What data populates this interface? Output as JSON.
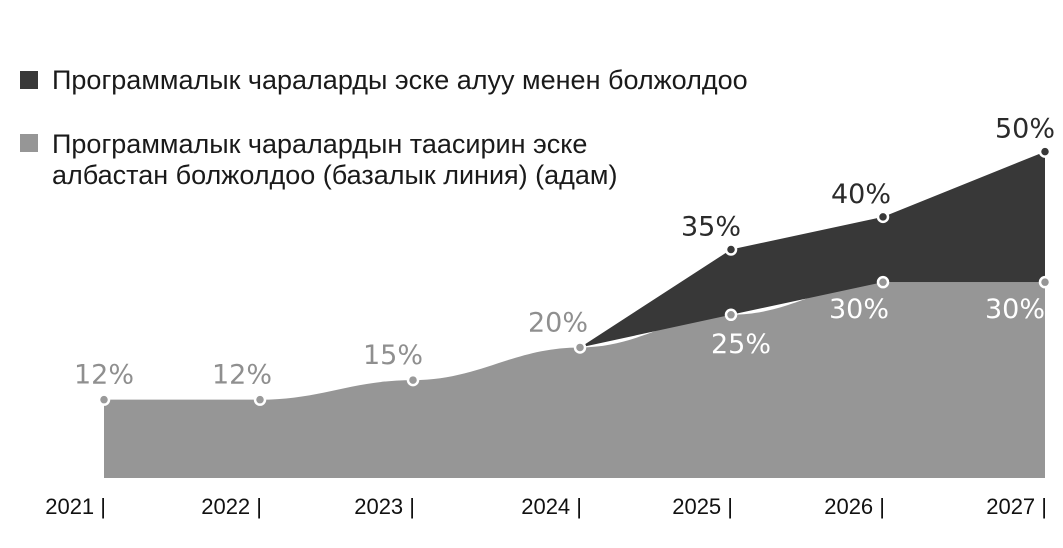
{
  "chart_data": {
    "type": "area",
    "categories": [
      "2021",
      "2022",
      "2023",
      "2024",
      "2025",
      "2026",
      "2027"
    ],
    "tick_labels": [
      "2021 |",
      "2022 |",
      "2023 |",
      "2024 |",
      "2025 |",
      "2026 |",
      "2027 |"
    ],
    "series": [
      {
        "name": "Программалык чаралардын таасирин эске албастан болжолдоо (базалык линия) (адам)",
        "legend_lines": [
          "Программалык чаралардын таасирин эске",
          "албастан болжолдоо (базалык линия) (адам)"
        ],
        "values": [
          12,
          12,
          15,
          20,
          25,
          30,
          30
        ],
        "labels": [
          "12%",
          "12%",
          "15%",
          "20%",
          "25%",
          "30%",
          "30%"
        ],
        "color": "#969696"
      },
      {
        "name": "Программалык чараларды эске алуу менен болжолдоо",
        "legend_lines": [
          "Программалык чараларды эске алуу менен болжолдоо"
        ],
        "values": [
          null,
          null,
          null,
          20,
          35,
          40,
          50
        ],
        "labels": [
          "",
          "",
          "",
          "",
          "35%",
          "40%",
          "50%"
        ],
        "color": "#383838"
      }
    ],
    "ylim": [
      0,
      55
    ],
    "grid": false,
    "legend_position": "top-left",
    "colors": {
      "baseline_fill": "#969696",
      "baseline_label": "#8f8f8f",
      "program_fill": "#383838",
      "program_label": "#2b2b2b",
      "marker_stroke": "#ffffff"
    }
  }
}
